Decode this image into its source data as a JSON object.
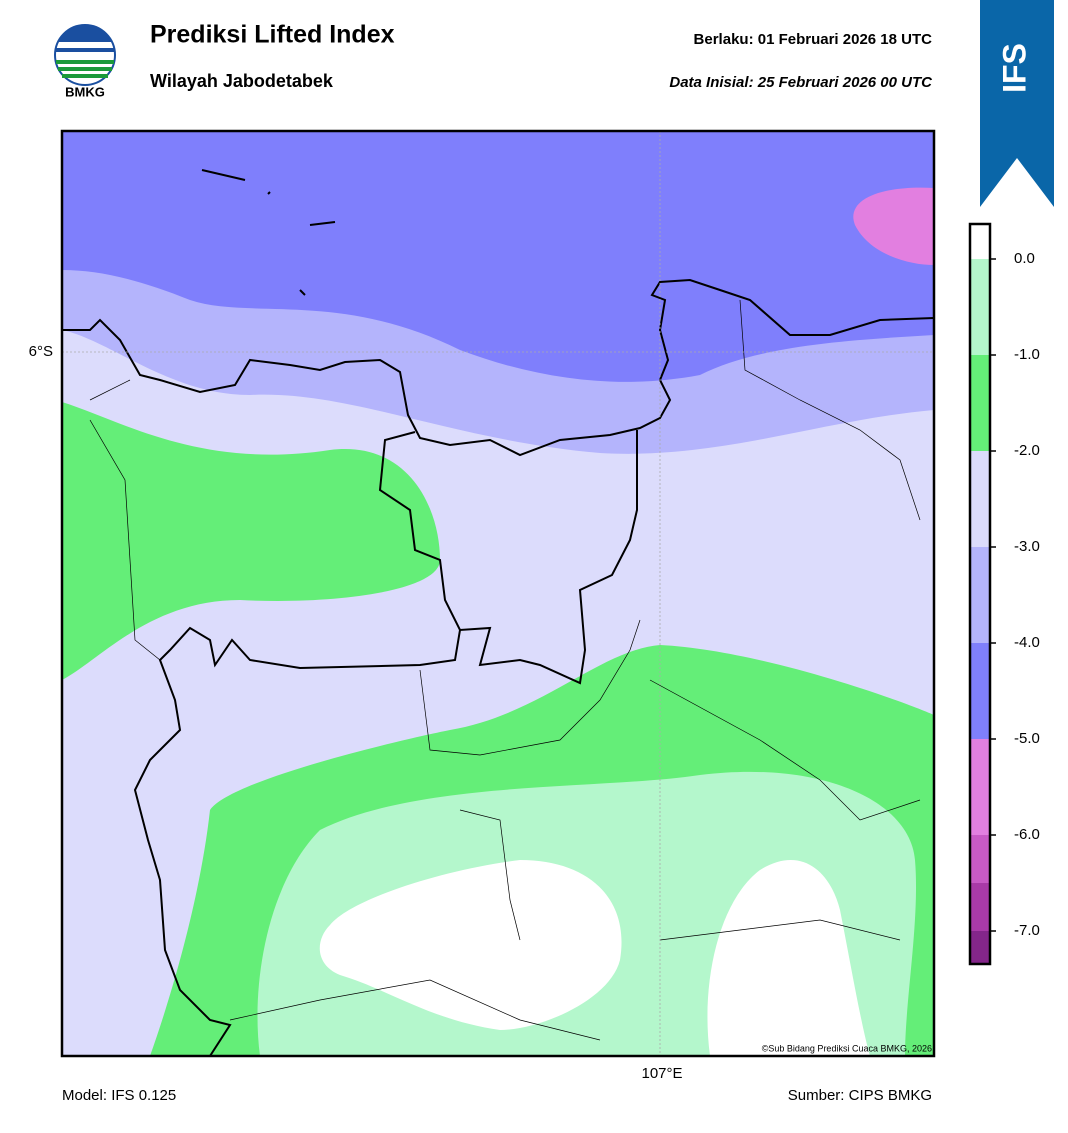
{
  "header": {
    "title": "Prediksi Lifted Index",
    "subtitle": "Wilayah Jabodetabek",
    "valid": "Berlaku:  01 Februari 2026 18 UTC",
    "init": "Data Inisial:  25 Februari 2026 00 UTC",
    "logo_text": "BMKG",
    "badge": "IFS"
  },
  "map": {
    "lat_label": "6°S",
    "lon_label": "107°E",
    "credit": "©Sub Bidang Prediksi Cuaca BMKG, 2026"
  },
  "colorbar": {
    "ticks": [
      "0.0",
      "-1.0",
      "-2.0",
      "-3.0",
      "-4.0",
      "-5.0",
      "-6.0",
      "-7.0"
    ]
  },
  "footer": {
    "model": "Model: IFS 0.125",
    "source": "Sumber: CIPS BMKG"
  }
}
